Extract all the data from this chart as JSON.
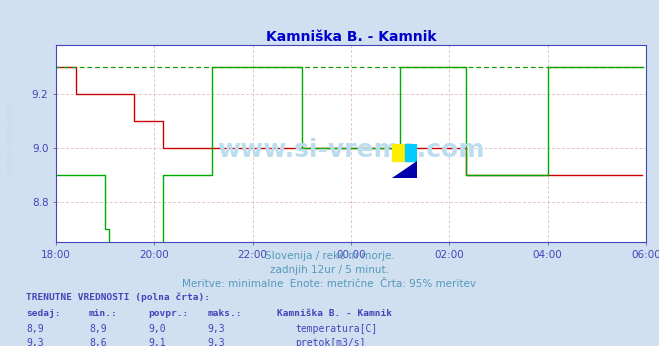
{
  "title": "Kamniška B. - Kamnik",
  "title_color": "#0000cc",
  "bg_color": "#d0e0f0",
  "plot_bg_color": "#ffffff",
  "grid_color_x": "#ddaaaa",
  "grid_color_y": "#ddaaaa",
  "xlabel_texts": [
    "18:00",
    "20:00",
    "22:00",
    "00:00",
    "02:00",
    "04:00",
    "06:00"
  ],
  "ylabel_ticks": [
    8.8,
    9.0,
    9.2
  ],
  "ylim": [
    8.65,
    9.38
  ],
  "xlim": [
    0,
    144
  ],
  "subtitle1": "Slovenija / reke in morje.",
  "subtitle2": "zadnjih 12ur / 5 minut.",
  "subtitle3": "Meritve: minimalne  Enote: metrične  Črta: 95% meritev",
  "subtitle_color": "#5599bb",
  "watermark": "www.si-vreme.com",
  "watermark_color": "#bbddee",
  "label_title": "TRENUTNE VREDNOSTI (polna črta):",
  "col_headers": [
    "sedaj:",
    "min.:",
    "povpr.:",
    "maks.:"
  ],
  "station_label": "Kamniška B. - Kamnik",
  "row1": [
    "8,9",
    "8,9",
    "9,0",
    "9,3"
  ],
  "row2": [
    "9,3",
    "8,6",
    "9,1",
    "9,3"
  ],
  "legend_labels": [
    "temperatura[C]",
    "pretok[m3/s]"
  ],
  "legend_colors": [
    "#cc0000",
    "#00aa00"
  ],
  "temp_color": "#cc0000",
  "flow_color": "#00aa00",
  "axis_color": "#4444bb",
  "tick_color": "#4444bb",
  "temp_data": [
    9.3,
    9.3,
    9.3,
    9.3,
    9.3,
    9.2,
    9.2,
    9.2,
    9.2,
    9.2,
    9.2,
    9.2,
    9.2,
    9.2,
    9.2,
    9.2,
    9.2,
    9.2,
    9.2,
    9.1,
    9.1,
    9.1,
    9.1,
    9.1,
    9.1,
    9.1,
    9.0,
    9.0,
    9.0,
    9.0,
    9.0,
    9.0,
    9.0,
    9.0,
    9.0,
    9.0,
    9.0,
    9.0,
    9.0,
    9.0,
    9.0,
    9.0,
    9.0,
    9.0,
    9.0,
    9.0,
    9.0,
    9.0,
    9.0,
    9.0,
    9.0,
    9.0,
    9.0,
    9.0,
    9.0,
    9.0,
    9.0,
    9.0,
    9.0,
    9.0,
    9.0,
    9.0,
    9.0,
    9.0,
    9.0,
    9.0,
    9.0,
    9.0,
    9.0,
    9.0,
    9.0,
    9.0,
    9.0,
    9.0,
    9.0,
    9.0,
    9.0,
    9.0,
    9.0,
    9.0,
    9.0,
    9.0,
    9.0,
    9.0,
    9.0,
    9.0,
    9.0,
    9.0,
    9.0,
    9.0,
    9.0,
    9.0,
    9.0,
    9.0,
    9.0,
    9.0,
    9.0,
    9.0,
    9.0,
    9.0,
    8.9,
    8.9,
    8.9,
    8.9,
    8.9,
    8.9,
    8.9,
    8.9,
    8.9,
    8.9,
    8.9,
    8.9,
    8.9,
    8.9,
    8.9,
    8.9,
    8.9,
    8.9,
    8.9,
    8.9,
    8.9,
    8.9,
    8.9,
    8.9,
    8.9,
    8.9,
    8.9,
    8.9,
    8.9,
    8.9,
    8.9,
    8.9,
    8.9,
    8.9,
    8.9,
    8.9,
    8.9,
    8.9,
    8.9,
    8.9,
    8.9,
    8.9,
    8.9,
    8.9
  ],
  "flow_data": [
    8.9,
    8.9,
    8.9,
    8.9,
    8.9,
    8.9,
    8.9,
    8.9,
    8.9,
    8.9,
    8.9,
    8.9,
    8.7,
    8.6,
    8.6,
    8.6,
    8.6,
    8.6,
    8.6,
    8.6,
    8.6,
    8.6,
    8.6,
    8.6,
    8.6,
    8.6,
    8.9,
    8.9,
    8.9,
    8.9,
    8.9,
    8.9,
    8.9,
    8.9,
    8.9,
    8.9,
    8.9,
    8.9,
    9.3,
    9.3,
    9.3,
    9.3,
    9.3,
    9.3,
    9.3,
    9.3,
    9.3,
    9.3,
    9.3,
    9.3,
    9.3,
    9.3,
    9.3,
    9.3,
    9.3,
    9.3,
    9.3,
    9.3,
    9.3,
    9.3,
    9.0,
    9.0,
    9.0,
    9.0,
    9.0,
    9.0,
    9.0,
    9.0,
    9.0,
    9.0,
    9.0,
    9.0,
    9.0,
    9.0,
    9.0,
    9.0,
    9.0,
    9.0,
    9.0,
    9.0,
    9.0,
    9.0,
    9.0,
    9.0,
    9.3,
    9.3,
    9.3,
    9.3,
    9.3,
    9.3,
    9.3,
    9.3,
    9.3,
    9.3,
    9.3,
    9.3,
    9.3,
    9.3,
    9.3,
    9.3,
    8.9,
    8.9,
    8.9,
    8.9,
    8.9,
    8.9,
    8.9,
    8.9,
    8.9,
    8.9,
    8.9,
    8.9,
    8.9,
    8.9,
    8.9,
    8.9,
    8.9,
    8.9,
    8.9,
    8.9,
    9.3,
    9.3,
    9.3,
    9.3,
    9.3,
    9.3,
    9.3,
    9.3,
    9.3,
    9.3,
    9.3,
    9.3,
    9.3,
    9.3,
    9.3,
    9.3,
    9.3,
    9.3,
    9.3,
    9.3,
    9.3,
    9.3,
    9.3,
    9.3
  ]
}
